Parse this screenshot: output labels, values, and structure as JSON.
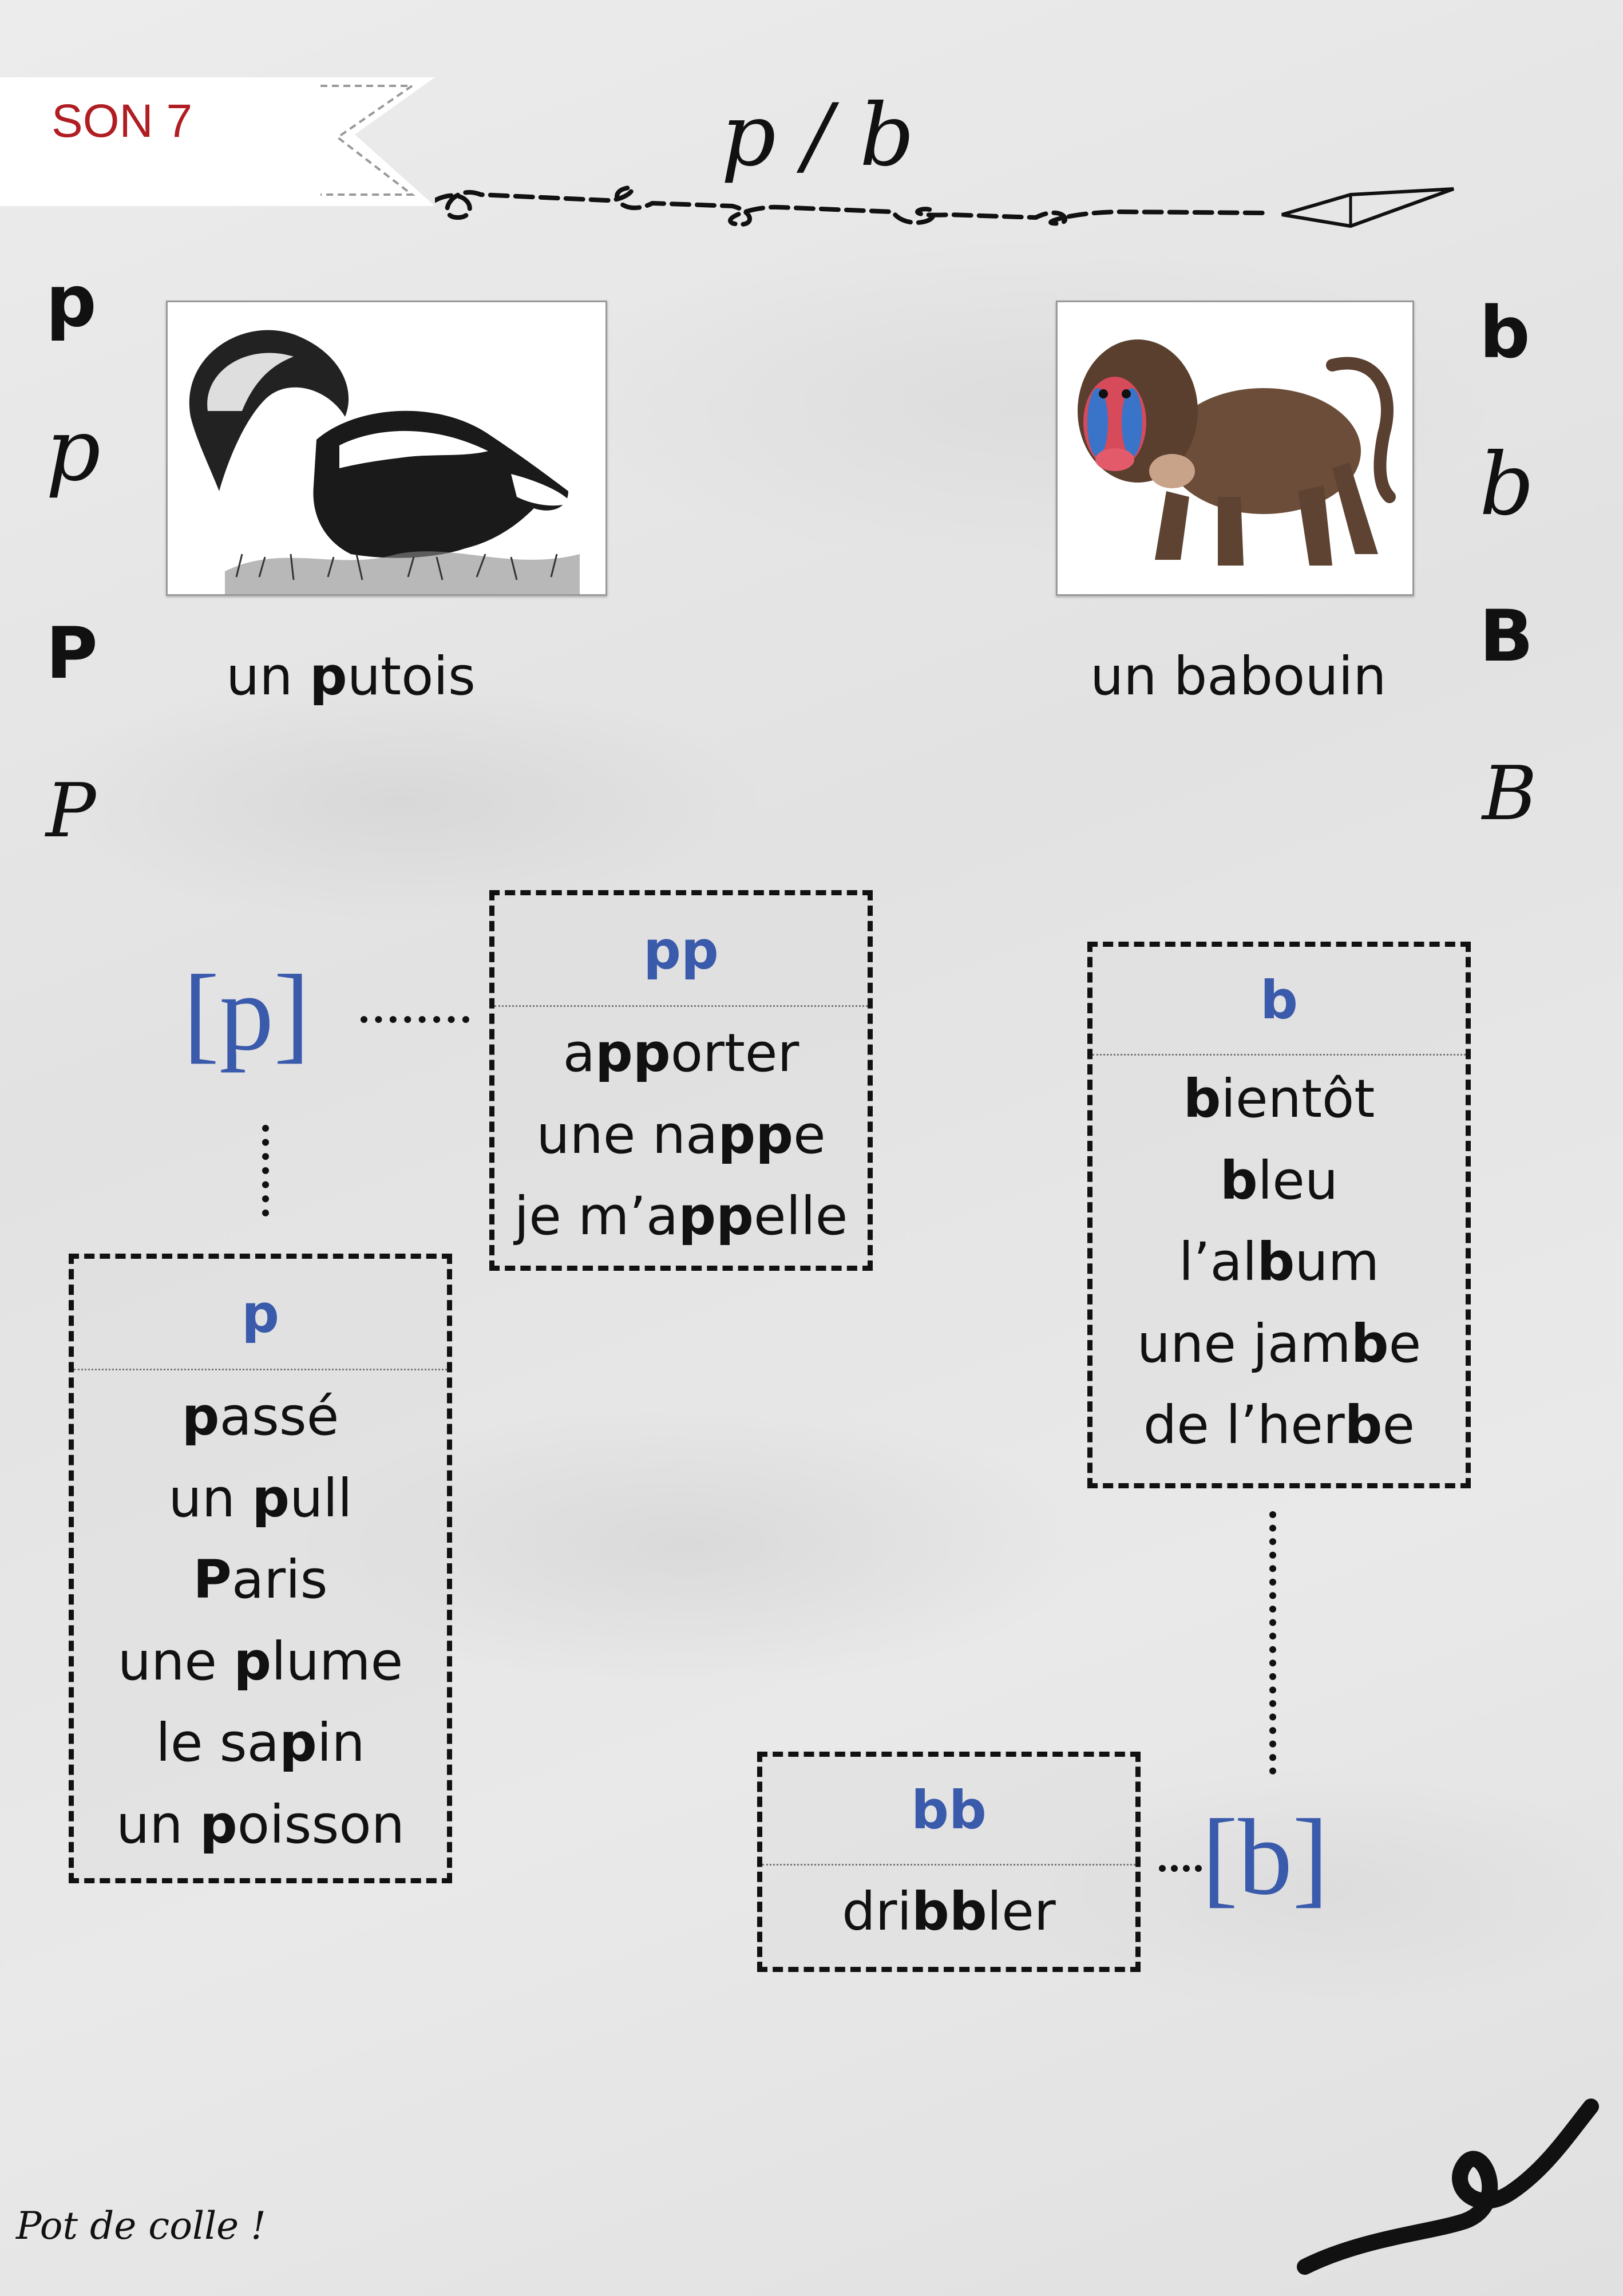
{
  "header": {
    "badge": "SON 7",
    "title": "p / b"
  },
  "left": {
    "letters": {
      "print_lower": "p",
      "cursive_lower": "p",
      "print_upper": "P",
      "cursive_upper": "P"
    },
    "caption": [
      "un ",
      "p",
      "utois"
    ],
    "phoneme": "[p]",
    "card_pp": {
      "heading": "pp",
      "words": [
        [
          "a",
          "pp",
          "orter"
        ],
        [
          "une na",
          "pp",
          "e"
        ],
        [
          "je m’a",
          "pp",
          "elle"
        ]
      ]
    },
    "card_p": {
      "heading": "p",
      "words": [
        [
          "",
          "p",
          "assé"
        ],
        [
          "un ",
          "p",
          "ull"
        ],
        [
          "",
          "P",
          "aris"
        ],
        [
          "une ",
          "p",
          "lume"
        ],
        [
          "le sa",
          "p",
          "in"
        ],
        [
          "un ",
          "p",
          "oisson"
        ]
      ]
    }
  },
  "right": {
    "letters": {
      "print_lower": "b",
      "cursive_lower": "b",
      "print_upper": "B",
      "cursive_upper": "B"
    },
    "caption": "un babouin",
    "phoneme": "[b]",
    "card_b": {
      "heading": "b",
      "words": [
        [
          "",
          "b",
          "ientôt"
        ],
        [
          "",
          "b",
          "leu"
        ],
        [
          "l’al",
          "b",
          "um"
        ],
        [
          "une jam",
          "b",
          "e"
        ],
        [
          "de l’her",
          "b",
          "e"
        ]
      ]
    },
    "card_bb": {
      "heading": "bb",
      "words": [
        [
          "dri",
          "bb",
          "ler"
        ]
      ]
    }
  },
  "footer": "Pot de colle !",
  "colors": {
    "badge_red": "#b01e23",
    "phoneme_blue": "#3a5aab"
  },
  "images": {
    "left": "skunk-illustration",
    "right": "baboon-illustration"
  }
}
